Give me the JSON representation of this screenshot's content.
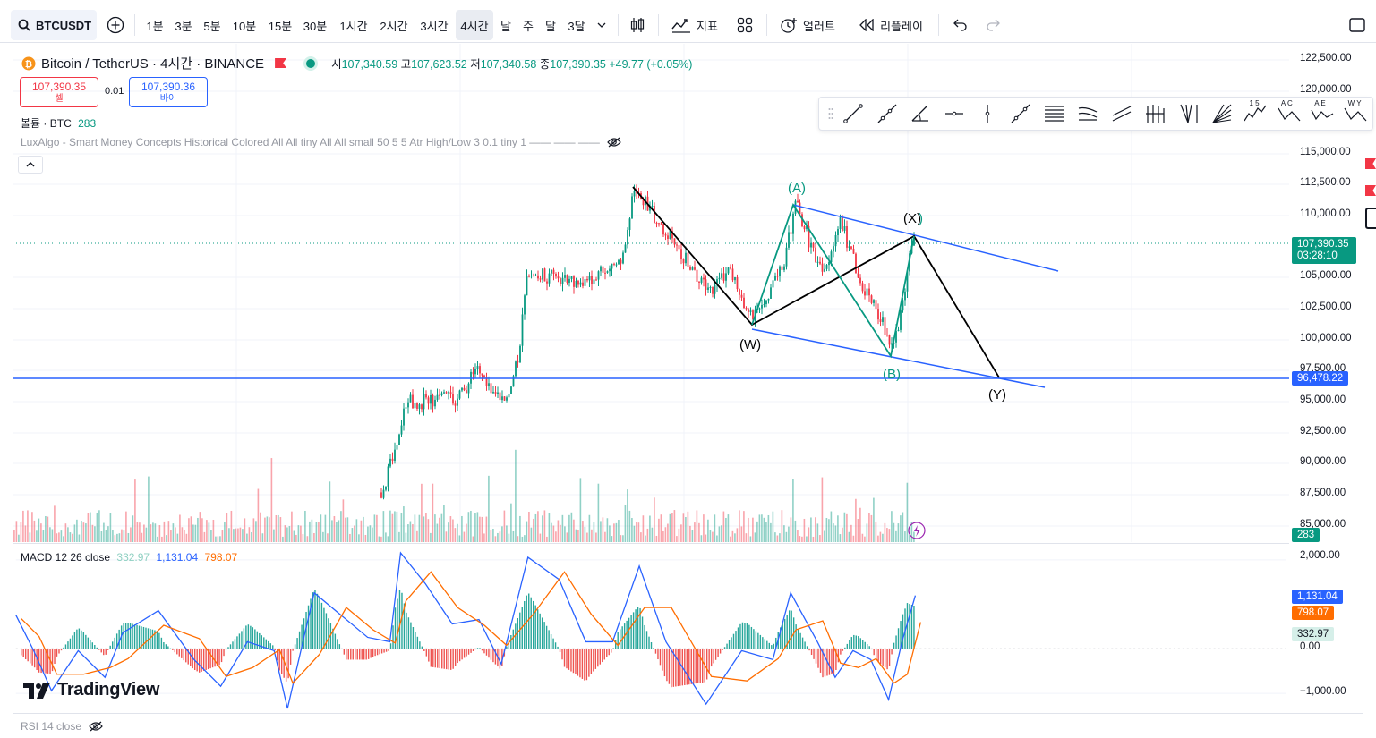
{
  "toolbar": {
    "symbol": "BTCUSDT",
    "intervals": [
      "1분",
      "3분",
      "5분",
      "10분",
      "15분",
      "30분",
      "1시간",
      "2시간",
      "3시간",
      "4시간",
      "날",
      "주",
      "달",
      "3달"
    ],
    "active_interval": "4시간",
    "indicators_label": "지표",
    "alert_label": "얼러트",
    "replay_label": "리플레이"
  },
  "legend": {
    "title": "Bitcoin / TetherUS · 4시간 · BINANCE",
    "open_label": "시",
    "open": "107,340.59",
    "high_label": "고",
    "high": "107,623.52",
    "low_label": "저",
    "low": "107,340.58",
    "close_label": "종",
    "close": "107,390.35",
    "change": "+49.77 (+0.05%)",
    "sell_price": "107,390.35",
    "sell_label": "셀",
    "spread": "0.01",
    "buy_price": "107,390.36",
    "buy_label": "바이",
    "volume_label": "볼륨 · BTC",
    "volume_value": "283",
    "luxalgo": "LuxAlgo - Smart Money Concepts Historical Colored All All tiny All All small 50 5 5 Atr High/Low 3 0.1 tiny 1 —— —— ——"
  },
  "price_axis": {
    "ticks": [
      "122,500.00",
      "120,000.00",
      "115,000.00",
      "112,500.00",
      "110,000.00",
      "105,000.00",
      "102,500.00",
      "100,000.00",
      "97,500.00",
      "95,000.00",
      "92,500.00",
      "90,000.00",
      "87,500.00",
      "85,000.00"
    ],
    "current_price": "107,390.35",
    "countdown": "03:28:10",
    "hline_price": "96,478.22",
    "volume_tag": "283"
  },
  "waves": {
    "W": "(W)",
    "X": "(X)",
    "Y": "(Y)",
    "A": "(A)",
    "B": "(B)",
    "C": ")"
  },
  "macd": {
    "label": "MACD 12 26 close",
    "hist": "332.97",
    "macd": "1,131.04",
    "signal": "798.07",
    "ticks": [
      "2,000.00",
      "0.00",
      "−1,000.00"
    ]
  },
  "rsi": {
    "label": "RSI 14 close"
  },
  "logo": {
    "text": "TradingView"
  },
  "drawing_tools": {
    "labels": [
      "1 5",
      "A C",
      "A E",
      "W Y"
    ]
  },
  "colors": {
    "up": "#089981",
    "down": "#f23645",
    "blue_line": "#2962ff",
    "macd_line": "#2962ff",
    "signal_line": "#ff6d00",
    "wave_black": "#000000",
    "wave_teal": "#089981"
  }
}
